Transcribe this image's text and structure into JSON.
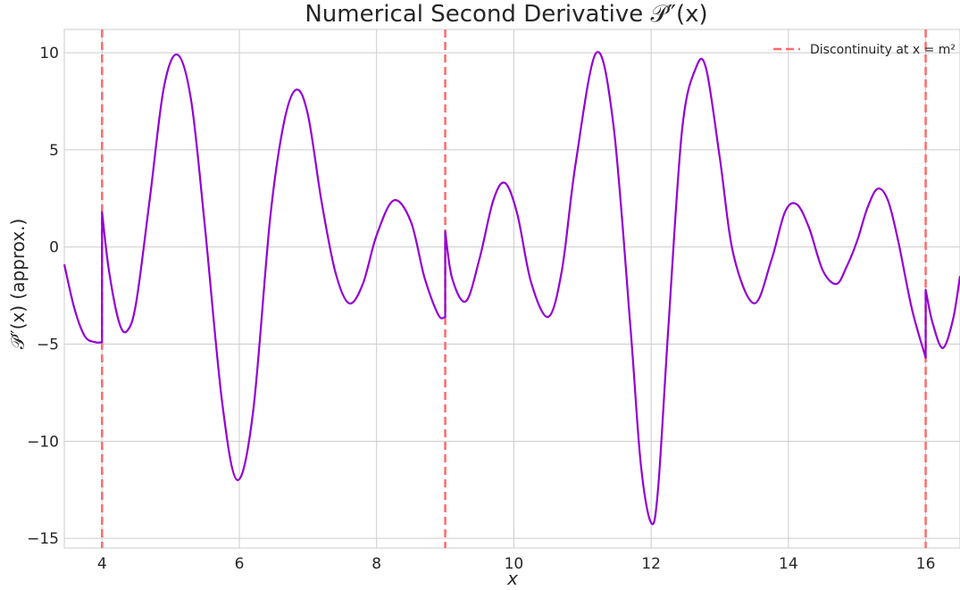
{
  "chart_data": {
    "type": "line",
    "title": "Numerical Second Derivative 𝒫″(x)",
    "xlabel": "x",
    "ylabel": "𝒫″(x) (approx.)",
    "xlim": [
      3.45,
      16.5
    ],
    "ylim": [
      -15.5,
      11.2
    ],
    "grid": true,
    "legend_position": "top-right",
    "x_ticks": [
      4,
      6,
      8,
      10,
      12,
      14,
      16
    ],
    "x_tick_labels": [
      "4",
      "6",
      "8",
      "10",
      "12",
      "14",
      "16"
    ],
    "y_ticks": [
      10,
      5,
      0,
      -5,
      -10,
      -15
    ],
    "y_tick_labels": [
      "10",
      "5",
      "0",
      "−5",
      "−10",
      "−15"
    ],
    "colors": {
      "series": "#9400d3",
      "discontinuity": "#ff6b6b",
      "grid": "#cccccc",
      "text": "#262626"
    },
    "discontinuities": {
      "name": "Discontinuity at x = m²",
      "x": [
        4,
        9,
        16
      ]
    },
    "series": [
      {
        "x": [
          3.45,
          3.6,
          3.75,
          3.9,
          4.0,
          4.0,
          4.1,
          4.25,
          4.37,
          4.5,
          4.7,
          4.9,
          5.1,
          5.3,
          5.5,
          5.75,
          5.97,
          6.2,
          6.45,
          6.65,
          6.83,
          7.0,
          7.2,
          7.4,
          7.6,
          7.8,
          8.0,
          8.25,
          8.5,
          8.7,
          8.9,
          9.0,
          9.0,
          9.1,
          9.3,
          9.5,
          9.7,
          9.87,
          10.05,
          10.25,
          10.5,
          10.7,
          10.9,
          11.2,
          11.45,
          11.7,
          11.85,
          12.0,
          12.1,
          12.25,
          12.45,
          12.65,
          12.8,
          13.0,
          13.2,
          13.5,
          13.75,
          13.95,
          14.12,
          14.3,
          14.5,
          14.7,
          14.85,
          15.0,
          15.15,
          15.3,
          15.45,
          15.6,
          15.8,
          16.0,
          16.0,
          16.1,
          16.25,
          16.4,
          16.5
        ],
        "y": [
          -0.9,
          -3.2,
          -4.6,
          -4.9,
          -4.9,
          1.8,
          -1.2,
          -3.9,
          -4.3,
          -2.8,
          2.6,
          8.2,
          9.9,
          7.5,
          1.0,
          -8.0,
          -12.0,
          -8.5,
          1.5,
          6.4,
          8.1,
          6.8,
          2.3,
          -1.3,
          -2.9,
          -1.9,
          0.6,
          2.4,
          1.3,
          -1.6,
          -3.5,
          -3.6,
          0.8,
          -1.6,
          -2.8,
          -0.6,
          2.4,
          3.3,
          1.7,
          -1.8,
          -3.6,
          -1.2,
          4.3,
          10.0,
          6.3,
          -4.2,
          -11.2,
          -14.2,
          -12.5,
          -4.2,
          6.0,
          9.2,
          9.2,
          4.6,
          -0.4,
          -2.9,
          -0.7,
          1.8,
          2.2,
          1.0,
          -1.2,
          -1.9,
          -1.0,
          0.3,
          2.0,
          3.0,
          2.4,
          0.3,
          -3.2,
          -5.7,
          -2.2,
          -3.9,
          -5.2,
          -3.7,
          -1.5
        ]
      }
    ]
  }
}
